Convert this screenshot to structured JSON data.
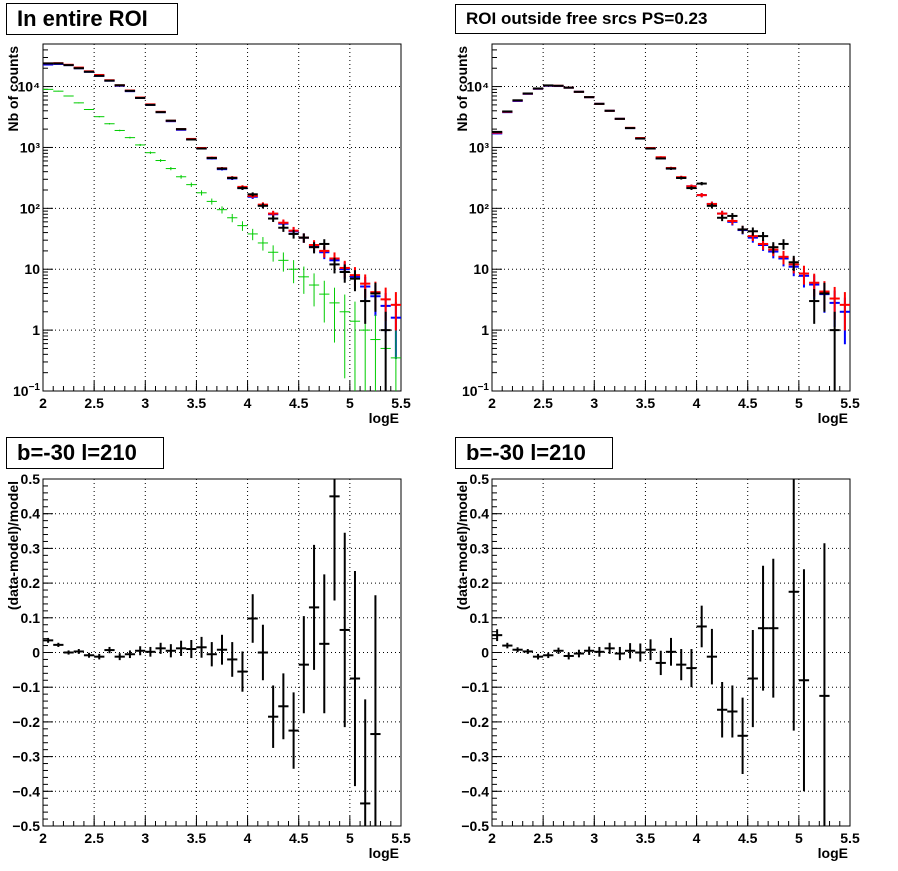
{
  "colors": {
    "data": "#000000",
    "model_total": "#ff0000",
    "model_alt": "#0000ff",
    "diffuse": "#00cc00",
    "grid": "#000000"
  },
  "panels": [
    {
      "title": "In entire ROI",
      "xlabel": "logE",
      "ylabel": "Nb of counts",
      "xlim": [
        2,
        5.5
      ],
      "x_ticks": [
        "2",
        "2.5",
        "3",
        "3.5",
        "4",
        "4.5",
        "5",
        "5.5"
      ],
      "y_ticks": [
        "10",
        "1",
        "10",
        "10²",
        "10³",
        "10⁴"
      ]
    },
    {
      "title": "ROI outside free srcs PS=0.23",
      "xlabel": "logE",
      "ylabel": "Nb of counts",
      "xlim": [
        2,
        5.5
      ],
      "x_ticks": [
        "2",
        "2.5",
        "3",
        "3.5",
        "4",
        "4.5",
        "5",
        "5.5"
      ],
      "y_ticks": [
        "10",
        "1",
        "10",
        "10²",
        "10³",
        "10⁴"
      ]
    },
    {
      "title": "b=-30 l=210",
      "xlabel": "logE",
      "ylabel": "(data-model)/model",
      "xlim": [
        2,
        5.5
      ],
      "x_ticks": [
        "2",
        "2.5",
        "3",
        "3.5",
        "4",
        "4.5",
        "5",
        "5.5"
      ],
      "y_ticks": [
        "-0.5",
        "-0.4",
        "-0.3",
        "-0.2",
        "-0.1",
        "0",
        "0.1",
        "0.2",
        "0.3",
        "0.4",
        "0.5"
      ]
    },
    {
      "title": "b=-30 l=210",
      "xlabel": "logE",
      "ylabel": "(data-model)/model",
      "xlim": [
        2,
        5.5
      ],
      "x_ticks": [
        "2",
        "2.5",
        "3",
        "3.5",
        "4",
        "4.5",
        "5",
        "5.5"
      ],
      "y_ticks": [
        "-0.5",
        "-0.4",
        "-0.3",
        "-0.2",
        "-0.1",
        "0",
        "0.1",
        "0.2",
        "0.3",
        "0.4",
        "0.5"
      ]
    }
  ],
  "chart_data": [
    {
      "type": "scatter",
      "title": "In entire ROI",
      "xlabel": "logE",
      "ylabel": "Nb of counts",
      "xlim": [
        2,
        5.5
      ],
      "ylim": [
        0.1,
        50000
      ],
      "yscale": "log",
      "grid": true,
      "bin_half_width": 0.05,
      "x": [
        2.05,
        2.15,
        2.25,
        2.35,
        2.45,
        2.55,
        2.65,
        2.75,
        2.85,
        2.95,
        3.05,
        3.15,
        3.25,
        3.35,
        3.45,
        3.55,
        3.65,
        3.75,
        3.85,
        3.95,
        4.05,
        4.15,
        4.25,
        4.35,
        4.45,
        4.55,
        4.65,
        4.75,
        4.85,
        4.95,
        5.05,
        5.15,
        5.25,
        5.35,
        5.45
      ],
      "series": [
        {
          "values": [
            23000,
            23500,
            22500,
            20000,
            17500,
            15000,
            12500,
            10300,
            8400,
            6500,
            5000,
            3800,
            2700,
            1950,
            1350,
            960,
            660,
            440,
            310,
            215,
            155,
            112,
            80,
            56,
            42,
            33,
            24,
            19,
            14,
            10,
            7.5,
            5.2,
            3.6,
            2.5,
            1.6
          ]
        },
        {
          "values": [
            9000,
            8400,
            7000,
            5400,
            4200,
            3200,
            2450,
            1900,
            1450,
            1100,
            820,
            610,
            450,
            330,
            245,
            180,
            130,
            95,
            70,
            52,
            38,
            27,
            19,
            14,
            10,
            7.5,
            5.5,
            3.9,
            2.8,
            2,
            1.4,
            1,
            0.7,
            0.5,
            0.35
          ]
        },
        {
          "values": [
            24000,
            24200,
            22800,
            20500,
            17800,
            15500,
            12700,
            10500,
            8600,
            6600,
            5100,
            3850,
            2750,
            2000,
            1380,
            980,
            680,
            455,
            320,
            225,
            160,
            115,
            82,
            58,
            43,
            33,
            25,
            20,
            15,
            10.5,
            8,
            5.8,
            4.2,
            3.2,
            2.6
          ]
        },
        {
          "values": [
            24000,
            24000,
            22500,
            20000,
            17500,
            15000,
            12500,
            10500,
            8500,
            6500,
            5000,
            3800,
            2750,
            2000,
            1350,
            960,
            670,
            450,
            315,
            215,
            170,
            110,
            68,
            48,
            38,
            33,
            23,
            26,
            12,
            9,
            7,
            3,
            4,
            1,
            null
          ]
        }
      ]
    },
    {
      "type": "scatter",
      "title": "ROI outside free srcs PS=0.23",
      "xlabel": "logE",
      "ylabel": "Nb of counts",
      "xlim": [
        2,
        5.5
      ],
      "ylim": [
        0.1,
        50000
      ],
      "yscale": "log",
      "grid": true,
      "bin_half_width": 0.05,
      "x": [
        2.05,
        2.15,
        2.25,
        2.35,
        2.45,
        2.55,
        2.65,
        2.75,
        2.85,
        2.95,
        3.05,
        3.15,
        3.25,
        3.35,
        3.45,
        3.55,
        3.65,
        3.75,
        3.85,
        3.95,
        4.05,
        4.15,
        4.25,
        4.35,
        4.45,
        4.55,
        4.65,
        4.75,
        4.85,
        4.95,
        5.05,
        5.15,
        5.25,
        5.35,
        5.45
      ],
      "series": [
        {
          "values": [
            1700,
            3800,
            5800,
            7600,
            9200,
            10300,
            10200,
            9600,
            8200,
            6700,
            5200,
            4000,
            2950,
            2080,
            1400,
            960,
            660,
            450,
            320,
            230,
            165,
            118,
            82,
            60,
            44,
            33,
            25,
            19.5,
            15,
            11,
            7.8,
            5.6,
            3.9,
            2.8,
            2
          ]
        },
        {
          "values": [
            1750,
            3850,
            5900,
            7650,
            9250,
            10400,
            10300,
            9600,
            8200,
            6700,
            5200,
            4000,
            2950,
            2100,
            1430,
            980,
            690,
            460,
            325,
            230,
            165,
            118,
            82,
            62,
            45,
            35,
            26,
            21,
            16,
            12,
            8.5,
            6,
            4.3,
            3.3,
            2.6
          ]
        },
        {
          "values": [
            1800,
            3900,
            5950,
            7700,
            9300,
            10450,
            10300,
            9600,
            8200,
            6700,
            5200,
            4000,
            2950,
            2080,
            1400,
            960,
            660,
            450,
            315,
            215,
            255,
            110,
            70,
            75,
            45,
            42,
            35,
            23,
            26,
            13,
            null,
            3,
            4,
            1,
            null
          ]
        }
      ]
    },
    {
      "type": "scatter",
      "title": "b=-30 l=210",
      "xlabel": "logE",
      "ylabel": "(data-model)/model",
      "xlim": [
        2,
        5.5
      ],
      "ylim": [
        -0.5,
        0.5
      ],
      "grid": true,
      "bin_half_width": 0.05,
      "x": [
        2.05,
        2.15,
        2.25,
        2.35,
        2.45,
        2.55,
        2.65,
        2.75,
        2.85,
        2.95,
        3.05,
        3.15,
        3.25,
        3.35,
        3.45,
        3.55,
        3.65,
        3.75,
        3.85,
        3.95,
        4.05,
        4.15,
        4.25,
        4.35,
        4.45,
        4.55,
        4.65,
        4.75,
        4.85,
        4.95,
        5.05,
        5.15,
        5.25
      ],
      "y": [
        0.035,
        0.022,
        0.0,
        0.003,
        -0.008,
        -0.012,
        0.007,
        -0.012,
        -0.005,
        0.005,
        0.002,
        0.012,
        0.005,
        0.012,
        0.01,
        0.015,
        -0.005,
        0.008,
        -0.02,
        -0.055,
        0.098,
        0.0,
        -0.185,
        -0.155,
        -0.225,
        -0.035,
        0.13,
        0.025,
        0.45,
        0.065,
        -0.075,
        -0.435,
        -0.235
      ],
      "err": [
        0.007,
        0.006,
        0.006,
        0.007,
        0.007,
        0.008,
        0.009,
        0.01,
        0.011,
        0.013,
        0.014,
        0.016,
        0.019,
        0.022,
        0.026,
        0.03,
        0.035,
        0.043,
        0.05,
        0.058,
        0.07,
        0.08,
        0.09,
        0.095,
        0.11,
        0.14,
        0.18,
        0.2,
        0.3,
        0.28,
        0.31,
        0.3,
        0.4
      ]
    },
    {
      "type": "scatter",
      "title": "b=-30 l=210",
      "xlabel": "logE",
      "ylabel": "(data-model)/model",
      "xlim": [
        2,
        5.5
      ],
      "ylim": [
        -0.5,
        0.5
      ],
      "grid": true,
      "bin_half_width": 0.05,
      "x": [
        2.05,
        2.15,
        2.25,
        2.35,
        2.45,
        2.55,
        2.65,
        2.75,
        2.85,
        2.95,
        3.05,
        3.15,
        3.25,
        3.35,
        3.45,
        3.55,
        3.65,
        3.75,
        3.85,
        3.95,
        4.05,
        4.15,
        4.25,
        4.35,
        4.45,
        4.55,
        4.65,
        4.75,
        4.95,
        5.05,
        5.25
      ],
      "y": [
        0.05,
        0.02,
        0.008,
        0.003,
        -0.012,
        -0.008,
        0.005,
        -0.01,
        -0.003,
        0.005,
        0.002,
        0.012,
        -0.003,
        0.005,
        0.0,
        0.008,
        -0.03,
        0.002,
        -0.035,
        -0.045,
        0.075,
        -0.012,
        -0.165,
        -0.17,
        -0.24,
        -0.075,
        0.07,
        0.07,
        0.175,
        -0.08,
        -0.125
      ],
      "err": [
        0.017,
        0.008,
        0.007,
        0.007,
        0.008,
        0.008,
        0.009,
        0.01,
        0.011,
        0.012,
        0.014,
        0.016,
        0.019,
        0.022,
        0.026,
        0.03,
        0.035,
        0.04,
        0.045,
        0.055,
        0.06,
        0.08,
        0.08,
        0.075,
        0.11,
        0.14,
        0.18,
        0.2,
        0.4,
        0.32,
        0.44
      ]
    }
  ]
}
